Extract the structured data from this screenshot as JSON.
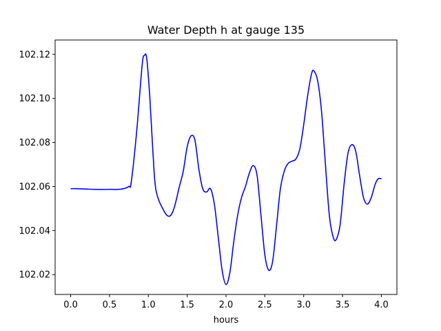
{
  "chart_data": {
    "type": "line",
    "title": "Water Depth h at gauge 135",
    "xlabel": "hours",
    "ylabel": "",
    "xlim": [
      -0.2,
      4.2
    ],
    "ylim": [
      102.011,
      102.1265
    ],
    "xticks": [
      0.0,
      0.5,
      1.0,
      1.5,
      2.0,
      2.5,
      3.0,
      3.5,
      4.0
    ],
    "xtick_labels": [
      "0.0",
      "0.5",
      "1.0",
      "1.5",
      "2.0",
      "2.5",
      "3.0",
      "3.5",
      "4.0"
    ],
    "yticks": [
      102.02,
      102.04,
      102.06,
      102.08,
      102.1,
      102.12
    ],
    "ytick_labels": [
      "102.02",
      "102.04",
      "102.06",
      "102.08",
      "102.10",
      "102.12"
    ],
    "grid": false,
    "legend": "none",
    "series": [
      {
        "name": "",
        "color": "#0000ff",
        "x": [
          0.0,
          0.1,
          0.3,
          0.5,
          0.65,
          0.75,
          0.78,
          0.85,
          0.92,
          0.95,
          0.98,
          1.02,
          1.06,
          1.1,
          1.2,
          1.27,
          1.33,
          1.4,
          1.45,
          1.5,
          1.55,
          1.6,
          1.65,
          1.7,
          1.75,
          1.8,
          1.85,
          1.9,
          1.95,
          2.0,
          2.05,
          2.1,
          2.15,
          2.2,
          2.25,
          2.3,
          2.35,
          2.4,
          2.45,
          2.5,
          2.55,
          2.6,
          2.65,
          2.7,
          2.75,
          2.8,
          2.85,
          2.9,
          2.95,
          3.0,
          3.05,
          3.1,
          3.13,
          3.18,
          3.23,
          3.28,
          3.33,
          3.38,
          3.42,
          3.47,
          3.52,
          3.57,
          3.62,
          3.67,
          3.72,
          3.77,
          3.82,
          3.87,
          3.92,
          3.96,
          4.0
        ],
        "y": [
          102.059,
          102.059,
          102.0587,
          102.0587,
          102.0588,
          102.06,
          102.062,
          102.085,
          102.115,
          102.1195,
          102.118,
          102.1,
          102.075,
          102.058,
          102.049,
          102.0465,
          102.05,
          102.06,
          102.067,
          102.078,
          102.083,
          102.081,
          102.068,
          102.059,
          102.0575,
          102.059,
          102.052,
          102.037,
          102.022,
          102.0155,
          102.021,
          102.035,
          102.047,
          102.055,
          102.06,
          102.066,
          102.0695,
          102.065,
          102.047,
          102.029,
          102.022,
          102.026,
          102.042,
          102.059,
          102.067,
          102.0705,
          102.0715,
          102.0725,
          102.077,
          102.088,
          102.101,
          102.111,
          102.1125,
          102.108,
          102.094,
          102.07,
          102.047,
          102.037,
          102.036,
          102.043,
          102.061,
          102.075,
          102.079,
          102.076,
          102.065,
          102.055,
          102.052,
          102.055,
          102.061,
          102.0635,
          102.0635
        ]
      }
    ]
  }
}
